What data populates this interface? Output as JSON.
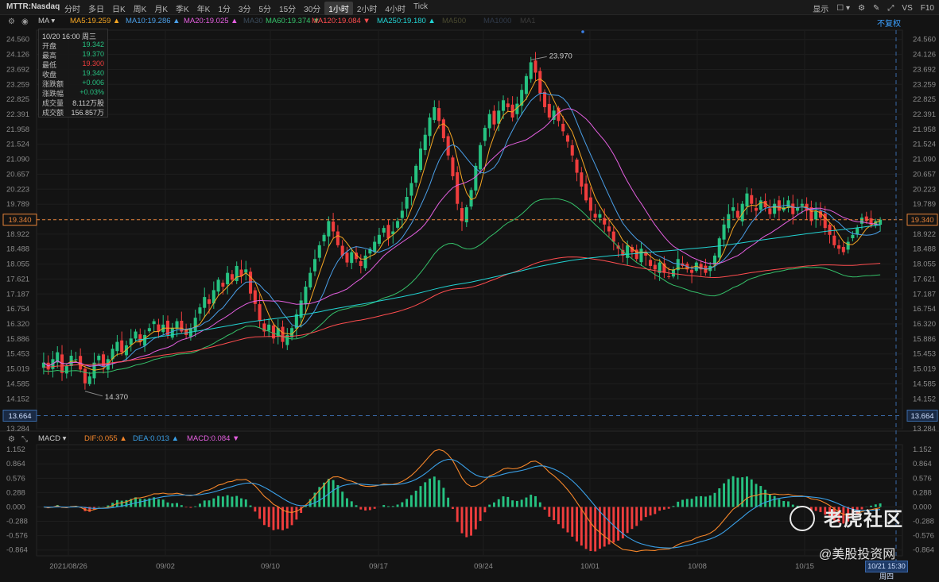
{
  "toolbar": {
    "symbol": "MTTR:Nasdaq",
    "periods": [
      "分时",
      "多日",
      "日K",
      "周K",
      "月K",
      "季K",
      "年K",
      "1分",
      "3分",
      "5分",
      "15分",
      "30分",
      "1小时",
      "2小时",
      "4小时",
      "Tick"
    ],
    "active_period": "1小时",
    "right": {
      "display": "显示",
      "vs": "VS",
      "f10": "F10"
    }
  },
  "ma_legend": [
    {
      "label": "MA",
      "color": "#c8c8c8"
    },
    {
      "label": "MA5:19.259",
      "color": "#f5a623",
      "arrow": "▲"
    },
    {
      "label": "MA10:19.286",
      "color": "#4a9fe8",
      "arrow": "▲"
    },
    {
      "label": "MA20:19.025",
      "color": "#e45fe0",
      "arrow": "▲"
    },
    {
      "label": "MA30",
      "color": "#3a4a5a"
    },
    {
      "label": "MA60:19.374",
      "color": "#35c26a",
      "arrow": "▼"
    },
    {
      "label": "MA120:19.084",
      "color": "#ff4d4f",
      "arrow": "▼"
    },
    {
      "label": "MA250:19.180",
      "color": "#22d3d3",
      "arrow": "▲"
    },
    {
      "label": "MA500",
      "color": "#4a4a30"
    },
    {
      "label": "MA1000",
      "color": "#303a4a"
    },
    {
      "label": "MA1",
      "color": "#3a3a3a"
    }
  ],
  "fuquan": "不复权",
  "infobox": {
    "date": "10/20 16:00 周三",
    "rows": [
      {
        "k": "开盘",
        "v": "19.342",
        "color": "#26c281"
      },
      {
        "k": "最高",
        "v": "19.370",
        "color": "#26c281"
      },
      {
        "k": "最低",
        "v": "19.300",
        "color": "#ef3d3d"
      },
      {
        "k": "收盘",
        "v": "19.340",
        "color": "#26c281"
      },
      {
        "k": "涨跌额",
        "v": "+0.006",
        "color": "#26c281"
      },
      {
        "k": "涨跌幅",
        "v": "+0.03%",
        "color": "#26c281"
      },
      {
        "k": "成交量",
        "v": "8.112万股",
        "color": "#cfcfcf"
      },
      {
        "k": "成交额",
        "v": "156.857万",
        "color": "#cfcfcf"
      }
    ]
  },
  "macd_legend": [
    {
      "label": "MACD",
      "color": "#c8c8c8"
    },
    {
      "label": "DIF:0.055",
      "color": "#f5862a",
      "arrow": "▲"
    },
    {
      "label": "DEA:0.013",
      "color": "#3aa0e8",
      "arrow": "▲"
    },
    {
      "label": "MACD:0.084",
      "color": "#e45fe0",
      "arrow": "▼"
    }
  ],
  "watermark": {
    "main": "老虎社区",
    "sub": "@美股投资网"
  },
  "current_time": "10/21 15:30 周四",
  "chart_data": [
    {
      "type": "candlestick",
      "ylim": [
        13.284,
        24.83
      ],
      "y_ticks": [
        13.284,
        14.152,
        14.585,
        15.019,
        15.453,
        15.886,
        16.32,
        16.754,
        17.187,
        17.621,
        18.055,
        18.488,
        18.922,
        19.356,
        19.789,
        20.223,
        20.657,
        21.09,
        21.524,
        21.958,
        22.391,
        22.825,
        23.259,
        23.692,
        24.126,
        24.56
      ],
      "x_labels": [
        "2021/08/26",
        "09/02",
        "09/10",
        "09/17",
        "09/24",
        "10/01",
        "10/08",
        "10/15"
      ],
      "last_price": "19.340",
      "low_line": "13.664",
      "annotations": [
        {
          "text": "23.970"
        },
        {
          "text": "14.370"
        }
      ],
      "closes": [
        15.2,
        15.0,
        15.3,
        15.5,
        14.9,
        15.1,
        15.4,
        15.3,
        15.0,
        14.6,
        14.8,
        15.2,
        15.4,
        15.1,
        15.3,
        15.6,
        15.8,
        15.5,
        15.7,
        15.9,
        16.1,
        15.8,
        16.0,
        16.2,
        16.4,
        16.1,
        16.3,
        16.0,
        16.2,
        16.4,
        16.1,
        16.0,
        16.2,
        16.5,
        16.8,
        17.1,
        16.9,
        17.3,
        17.6,
        17.4,
        17.8,
        17.6,
        18.0,
        17.7,
        17.9,
        17.2,
        16.9,
        16.4,
        16.1,
        16.3,
        15.9,
        16.2,
        15.8,
        16.0,
        16.2,
        16.6,
        17.0,
        17.4,
        17.8,
        18.2,
        18.6,
        18.9,
        19.3,
        19.0,
        18.6,
        18.3,
        18.1,
        18.4,
        18.2,
        18.0,
        18.3,
        18.5,
        18.7,
        18.9,
        19.1,
        18.8,
        19.0,
        19.3,
        19.6,
        20.0,
        20.4,
        20.9,
        21.4,
        21.8,
        22.3,
        22.6,
        22.2,
        21.7,
        21.2,
        20.6,
        19.8,
        19.3,
        19.7,
        20.2,
        20.9,
        21.5,
        22.0,
        22.4,
        22.1,
        22.5,
        22.8,
        22.6,
        22.3,
        22.7,
        23.1,
        23.5,
        23.9,
        23.6,
        23.0,
        22.6,
        22.3,
        22.5,
        22.2,
        21.9,
        21.6,
        21.2,
        20.7,
        20.3,
        19.9,
        19.6,
        19.4,
        19.5,
        19.2,
        19.0,
        18.7,
        18.5,
        18.3,
        18.6,
        18.4,
        18.2,
        18.5,
        18.3,
        18.0,
        17.9,
        18.1,
        17.8,
        17.7,
        17.9,
        18.2,
        18.0,
        17.9,
        17.8,
        18.1,
        17.9,
        17.8,
        18.0,
        18.3,
        18.8,
        19.2,
        19.5,
        19.7,
        19.4,
        19.8,
        20.1,
        19.8,
        19.6,
        19.9,
        19.7,
        19.5,
        19.8,
        19.6,
        19.7,
        19.9,
        19.5,
        19.7,
        19.8,
        19.6,
        19.3,
        19.6,
        19.4,
        19.1,
        18.9,
        18.6,
        18.5,
        18.4,
        18.7,
        18.9,
        19.1,
        19.4,
        19.3,
        19.2,
        19.3,
        19.34
      ],
      "ma_last": {
        "MA5": 19.259,
        "MA10": 19.286,
        "MA20": 19.025,
        "MA60": 19.374,
        "MA120": 19.084,
        "MA250": 19.18
      }
    },
    {
      "type": "macd",
      "ylim": [
        -0.98,
        1.25
      ],
      "y_ticks": [
        -0.864,
        -0.576,
        -0.288,
        0.0,
        0.288,
        0.576,
        0.864,
        1.152
      ],
      "DIF": 0.055,
      "DEA": 0.013,
      "MACD": 0.084
    }
  ]
}
